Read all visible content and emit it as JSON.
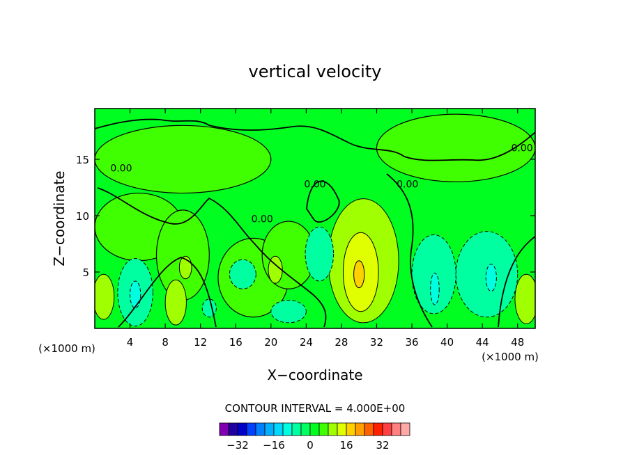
{
  "chart_data": {
    "type": "contour",
    "title": "vertical velocity",
    "xlabel": "X−coordinate",
    "ylabel": "Z−coordinate",
    "x_unit_left": "(×1000 m)",
    "x_unit_right": "(×1000 m)",
    "xlim": [
      0,
      50
    ],
    "ylim": [
      0,
      19.5
    ],
    "x_ticks": [
      4,
      8,
      12,
      16,
      20,
      24,
      28,
      32,
      36,
      40,
      44,
      48
    ],
    "y_ticks": [
      5,
      10,
      15
    ],
    "contour_interval_text": "CONTOUR INTERVAL = 4.000E+00",
    "contour_labels": [
      "0.00",
      "0.00",
      "0.00",
      "0.00",
      "0.00"
    ],
    "zero_label_positions": [
      [
        19,
        9.4
      ],
      [
        25,
        12.5
      ],
      [
        35.5,
        12.5
      ],
      [
        3,
        13.9
      ],
      [
        48.5,
        15.7
      ]
    ],
    "colorbar": {
      "colors": [
        "#8000b0",
        "#2000a0",
        "#0000c8",
        "#0040ff",
        "#0080ff",
        "#00b0ff",
        "#00d8ff",
        "#00ffe0",
        "#00ffa0",
        "#00ff60",
        "#00ff20",
        "#40ff00",
        "#a0ff00",
        "#e0ff00",
        "#ffd000",
        "#ffa000",
        "#ff6000",
        "#ff2000",
        "#ff4040",
        "#ff8080",
        "#ffa8a8"
      ],
      "tick_labels": [
        "−32",
        "−16",
        "0",
        "16",
        "32"
      ],
      "tick_values": [
        -32,
        -16,
        0,
        16,
        32
      ],
      "range": [
        -40,
        44
      ]
    },
    "features": [
      {
        "kind": "region",
        "level": 0,
        "color": "#40ff00",
        "x": 10,
        "y": 15,
        "rx": 10,
        "ry": 3
      },
      {
        "kind": "region",
        "level": 0,
        "color": "#40ff00",
        "x": 41,
        "y": 16,
        "rx": 9,
        "ry": 3
      },
      {
        "kind": "region",
        "level": 0,
        "color": "#40ff00",
        "x": 5,
        "y": 9,
        "rx": 5,
        "ry": 3
      },
      {
        "kind": "region",
        "level": 0,
        "color": "#40ff00",
        "x": 18,
        "y": 4.5,
        "rx": 4,
        "ry": 3.5
      },
      {
        "kind": "region",
        "level": 0,
        "color": "#40ff00",
        "x": 22,
        "y": 6.5,
        "rx": 3,
        "ry": 3
      },
      {
        "kind": "region",
        "level": 0,
        "color": "#40ff00",
        "x": 10,
        "y": 6.5,
        "rx": 3,
        "ry": 4
      },
      {
        "kind": "region",
        "level": 4,
        "color": "#a0ff00",
        "x": 30.5,
        "y": 6,
        "rx": 4,
        "ry": 5.5
      },
      {
        "kind": "region",
        "level": 8,
        "color": "#e0ff00",
        "x": 30.2,
        "y": 5,
        "rx": 2,
        "ry": 3.5
      },
      {
        "kind": "region",
        "level": 12,
        "color": "#ffd000",
        "x": 30,
        "y": 4.8,
        "rx": 0.6,
        "ry": 1.2
      },
      {
        "kind": "region",
        "level": 4,
        "color": "#a0ff00",
        "x": 9.2,
        "y": 2.3,
        "rx": 1.2,
        "ry": 2
      },
      {
        "kind": "region",
        "level": 4,
        "color": "#a0ff00",
        "x": 1,
        "y": 2.8,
        "rx": 1.2,
        "ry": 2
      },
      {
        "kind": "region",
        "level": 4,
        "color": "#a0ff00",
        "x": 49,
        "y": 2.6,
        "rx": 1.3,
        "ry": 2.2
      },
      {
        "kind": "region",
        "level": 4,
        "color": "#a0ff00",
        "x": 20.5,
        "y": 5.2,
        "rx": 0.8,
        "ry": 1.2
      },
      {
        "kind": "region",
        "level": 4,
        "color": "#a0ff00",
        "x": 10.3,
        "y": 5.4,
        "rx": 0.7,
        "ry": 1
      },
      {
        "kind": "region",
        "level": -4,
        "color": "#00ffa0",
        "x": 4.6,
        "y": 3.2,
        "rx": 2,
        "ry": 3
      },
      {
        "kind": "region",
        "level": -4,
        "color": "#00ffa0",
        "x": 25.5,
        "y": 6.6,
        "rx": 1.6,
        "ry": 2.4
      },
      {
        "kind": "region",
        "level": -4,
        "color": "#00ffa0",
        "x": 38.5,
        "y": 4.8,
        "rx": 2.5,
        "ry": 3.5
      },
      {
        "kind": "region",
        "level": -4,
        "color": "#00ffa0",
        "x": 44.5,
        "y": 4.8,
        "rx": 3.5,
        "ry": 3.8
      },
      {
        "kind": "region",
        "level": -4,
        "color": "#00ffa0",
        "x": 22,
        "y": 1.5,
        "rx": 2,
        "ry": 1
      },
      {
        "kind": "region",
        "level": -4,
        "color": "#00ffa0",
        "x": 13,
        "y": 1.8,
        "rx": 0.8,
        "ry": 0.8
      },
      {
        "kind": "region",
        "level": -4,
        "color": "#00ffa0",
        "x": 16.8,
        "y": 4.8,
        "rx": 1.5,
        "ry": 1.3
      },
      {
        "kind": "region",
        "level": -8,
        "color": "#00ffe0",
        "x": 4.6,
        "y": 3,
        "rx": 0.6,
        "ry": 1.2
      },
      {
        "kind": "region",
        "level": -8,
        "color": "#00ffe0",
        "x": 38.6,
        "y": 3.5,
        "rx": 0.5,
        "ry": 1.4
      },
      {
        "kind": "region",
        "level": -8,
        "color": "#00ffe0",
        "x": 45,
        "y": 4.5,
        "rx": 0.6,
        "ry": 1.2
      }
    ]
  }
}
